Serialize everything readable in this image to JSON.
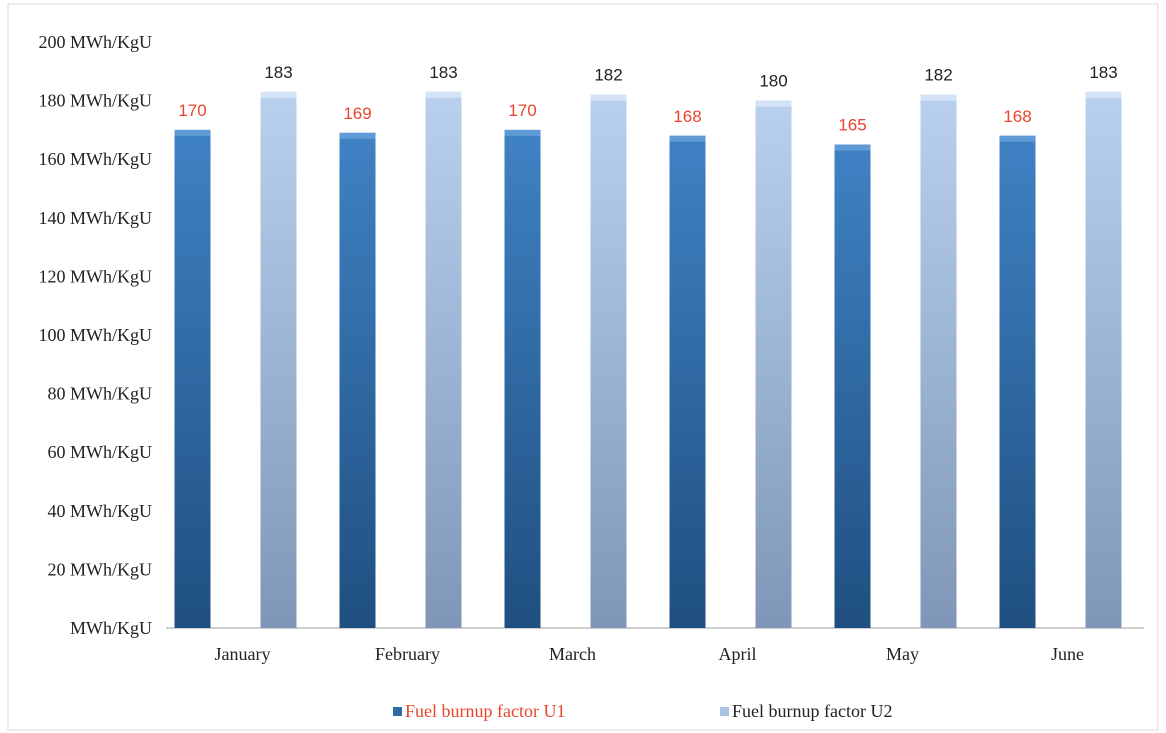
{
  "chart_data": {
    "type": "bar",
    "title": "",
    "xlabel": "",
    "ylabel": "",
    "categories": [
      "January",
      "February",
      "March",
      "April",
      "May",
      "June"
    ],
    "series": [
      {
        "name": "Fuel burnup factor U1",
        "values": [
          170,
          169,
          170,
          168,
          165,
          168
        ],
        "color": "#2e6aa6",
        "label_color": "#e8452c"
      },
      {
        "name": "Fuel burnup factor U2",
        "values": [
          183,
          183,
          182,
          180,
          182,
          183
        ],
        "color": "#a8c3e4",
        "label_color": "#222222"
      }
    ],
    "ylim": [
      0,
      200
    ],
    "yticks": [
      0,
      20,
      40,
      60,
      80,
      100,
      120,
      140,
      160,
      180,
      200
    ],
    "ytick_labels": [
      "MWh/KgU",
      "20 MWh/KgU",
      "40 MWh/KgU",
      "60 MWh/KgU",
      "80 MWh/KgU",
      "100 MWh/KgU",
      "120 MWh/KgU",
      "140 MWh/KgU",
      "160 MWh/KgU",
      "180 MWh/KgU",
      "200 MWh/KgU"
    ],
    "grid": false,
    "legend_position": "bottom"
  }
}
